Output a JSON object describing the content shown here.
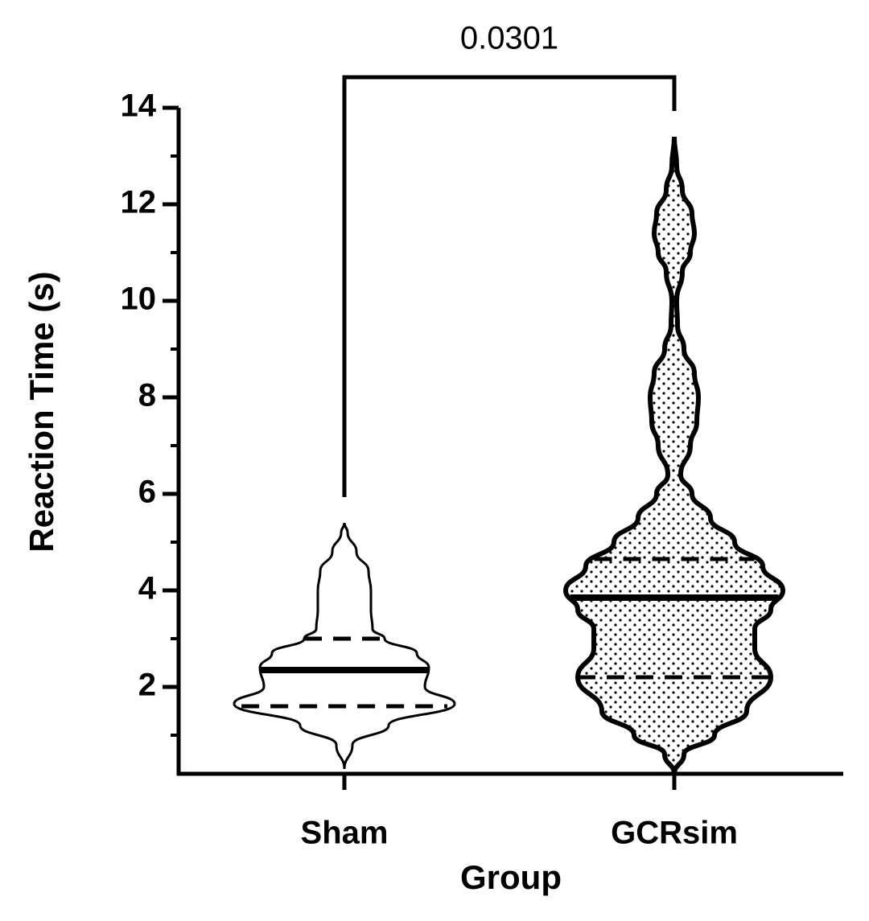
{
  "chart_data": {
    "type": "violin",
    "x_label": "Group",
    "y_label": "Reaction Time (s)",
    "categories": [
      "Sham",
      "GCRsim"
    ],
    "ylim": [
      0.2,
      14
    ],
    "yticks": [
      2,
      4,
      6,
      8,
      10,
      12,
      14
    ],
    "yminorticks": [
      1,
      3,
      5,
      7,
      9,
      11,
      13
    ],
    "series": [
      {
        "name": "Sham",
        "color": "#000000",
        "pattern": "none",
        "q1": 1.6,
        "median": 2.35,
        "q3": 3.0,
        "density": {
          "y": [
            0.3,
            0.8,
            1.2,
            1.65,
            2.0,
            2.4,
            2.7,
            3.0,
            3.2,
            3.6,
            4.0,
            4.4,
            4.8,
            5.2,
            5.4
          ],
          "width": [
            0,
            10,
            55,
            137,
            100,
            105,
            90,
            50,
            35,
            33,
            33,
            30,
            15,
            4,
            0
          ]
        }
      },
      {
        "name": "GCRsim",
        "color": "#000000",
        "pattern": "dots",
        "q1": 2.2,
        "median": 3.85,
        "q3": 4.65,
        "density": {
          "y": [
            0.2,
            0.6,
            1.0,
            1.5,
            2.2,
            2.8,
            3.2,
            3.6,
            4.0,
            4.5,
            5.0,
            5.5,
            6.0,
            6.4,
            7.0,
            7.5,
            8.0,
            8.5,
            9.0,
            9.5,
            10.0,
            10.6,
            11.0,
            11.4,
            11.8,
            12.3,
            12.8,
            13.4
          ],
          "width": [
            0,
            12,
            50,
            90,
            120,
            100,
            100,
            120,
            135,
            110,
            75,
            45,
            22,
            8,
            20,
            28,
            30,
            25,
            12,
            4,
            3,
            10,
            20,
            25,
            22,
            10,
            3,
            0
          ]
        }
      }
    ],
    "annotations": [
      {
        "text": "0.0301",
        "between": [
          "Sham",
          "GCRsim"
        ]
      }
    ]
  }
}
